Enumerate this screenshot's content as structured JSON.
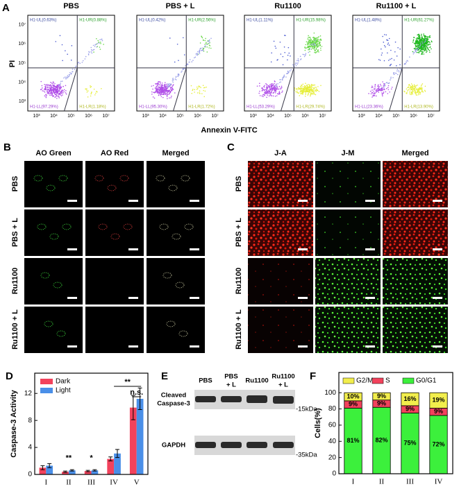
{
  "panel_a": {
    "letter": "A",
    "y_axis_label": "PI",
    "x_axis_label": "Annexin V-FITC",
    "tick_labels": [
      "10³",
      "10⁴",
      "10⁵",
      "10⁶",
      "10⁷"
    ],
    "plots": [
      {
        "title": "PBS",
        "ul": "H1-UL(0.63%)",
        "ur": "H1-UR(0.88%)",
        "ll": "H1-LL(97.29%)",
        "lr": "H1-LR(1.18%)"
      },
      {
        "title": "PBS + L",
        "ul": "H1-UL(0.42%)",
        "ur": "H1-UR(2.56%)",
        "ll": "H1-LL(95.30%)",
        "lr": "H1-LR(1.72%)"
      },
      {
        "title": "Ru1100",
        "ul": "H1-UL(1.11%)",
        "ur": "H1-UR(15.98%)",
        "ll": "H1-LL(53.29%)",
        "lr": "H1-LR(29.74%)"
      },
      {
        "title": "Ru1100 + L",
        "ul": "H1-UL(1.48%)",
        "ur": "H1-UR(61.27%)",
        "ll": "H1-LL(23.36%)",
        "lr": "H1-LR(13.90%)"
      }
    ]
  },
  "panel_b": {
    "letter": "B",
    "columns": [
      "AO Green",
      "AO Red",
      "Merged"
    ],
    "rows": [
      "PBS",
      "PBS + L",
      "Ru1100",
      "Ru1100 + L"
    ]
  },
  "panel_c": {
    "letter": "C",
    "columns": [
      "J-A",
      "J-M",
      "Merged"
    ],
    "rows": [
      "PBS",
      "PBS + L",
      "Ru1100",
      "Ru1100 + L"
    ]
  },
  "panel_e": {
    "letter": "E",
    "lanes": [
      [
        "PBS"
      ],
      [
        "PBS",
        "+ L"
      ],
      [
        "Ru1100"
      ],
      [
        "Ru1100",
        "+ L"
      ]
    ],
    "bands": [
      [
        "Cleaved",
        "Caspase-3"
      ],
      [
        "GAPDH"
      ]
    ],
    "markers": [
      "-15kDa",
      "-35kDa"
    ]
  },
  "chart_data": [
    {
      "type": "bar",
      "panel_label": "D",
      "y_label": "Caspase-3 Activity",
      "categories": [
        "I",
        "II",
        "III",
        "IV",
        "V"
      ],
      "series": [
        {
          "name": "Dark",
          "color": "#f2425c",
          "values": [
            1.0,
            0.4,
            0.5,
            2.3,
            9.9
          ],
          "errors": [
            0.3,
            0.1,
            0.1,
            0.3,
            1.8
          ]
        },
        {
          "name": "Light",
          "color": "#4a8fe8",
          "values": [
            1.3,
            0.6,
            0.6,
            3.1,
            11.2
          ],
          "errors": [
            0.3,
            0.1,
            0.1,
            0.6,
            1.6
          ]
        }
      ],
      "ylim": [
        0,
        15
      ],
      "yticks": [
        0,
        4,
        8,
        12
      ],
      "legend": "top-left",
      "annotations": [
        "**",
        "*",
        "**",
        "n.s."
      ]
    },
    {
      "type": "stacked-bar",
      "panel_label": "F",
      "y_label": "Cells(%)",
      "categories": [
        "I",
        "II",
        "III",
        "IV"
      ],
      "series": [
        {
          "name": "G2/M",
          "color": "#f2ee4c",
          "values": [
            10,
            9,
            16,
            19
          ],
          "value_labels": [
            "10%",
            "9%",
            "16%",
            "19%"
          ]
        },
        {
          "name": "S",
          "color": "#f2425c",
          "values": [
            9,
            9,
            9,
            9
          ],
          "value_labels": [
            "9%",
            "9%",
            "9%",
            "9%"
          ]
        },
        {
          "name": "G0/G1",
          "color": "#3cf03c",
          "values": [
            81,
            82,
            75,
            72
          ],
          "value_labels": [
            "81%",
            "82%",
            "75%",
            "72%"
          ]
        }
      ],
      "ylim": [
        0,
        125
      ],
      "yticks": [
        0,
        20,
        40,
        60,
        80,
        100
      ],
      "legend": "top"
    }
  ]
}
